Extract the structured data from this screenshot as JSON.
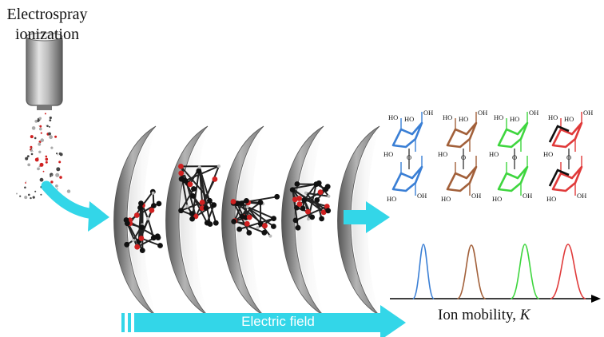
{
  "labels": {
    "esi_line1": "Electrospray",
    "esi_line2": "ionization",
    "field": "Electric field",
    "mobility_prefix": "Ion mobility, ",
    "mobility_symbol": "K",
    "hydroxyl": "HO",
    "hydroxyl_right": "OH",
    "ring_o": "O"
  },
  "colors": {
    "arrow": "#33d6e8",
    "plate": "#9a9a9a",
    "peak_blue": "#3a7fd5",
    "peak_brown": "#a2603a",
    "peak_green": "#3fd63f",
    "peak_red": "#e03a3a",
    "atom_carbon": "#111111",
    "atom_oxygen": "#d02020",
    "atom_h": "#bbbbbb"
  },
  "peaks": [
    "blue",
    "brown",
    "green",
    "red"
  ],
  "icons": [
    "emitter-icon",
    "spray-droplets",
    "curved-arrow-icon",
    "arrow-right-icon"
  ]
}
